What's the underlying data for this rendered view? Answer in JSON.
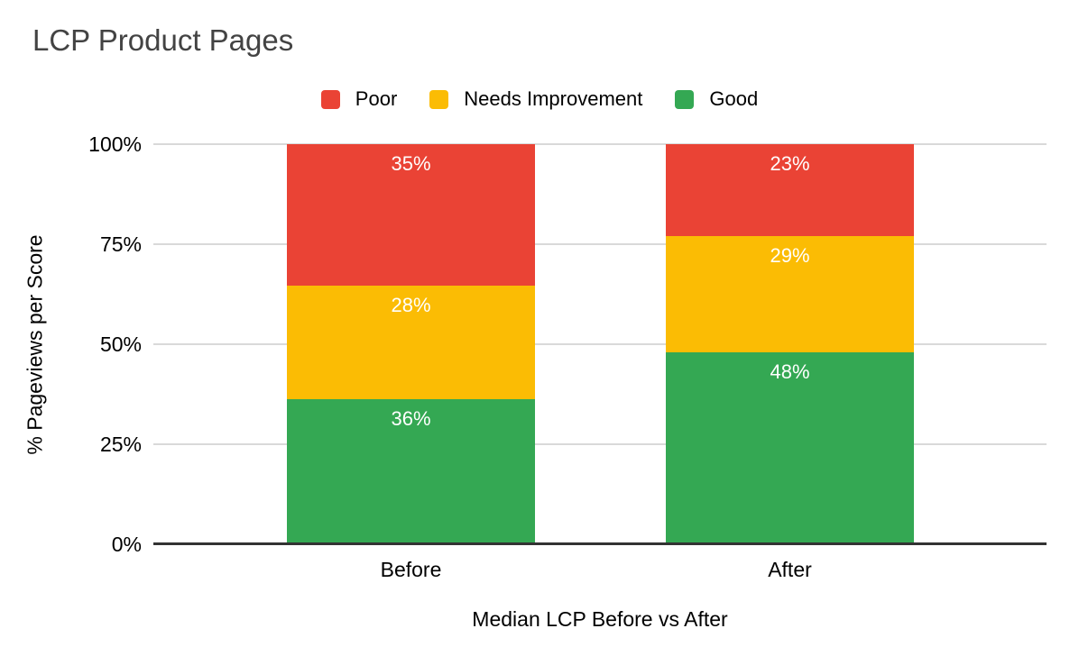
{
  "chart_data": {
    "type": "bar",
    "stacked": true,
    "title": "LCP Product Pages",
    "xlabel": "Median LCP Before vs After",
    "ylabel": "% Pageviews per Score",
    "categories": [
      "Before",
      "After"
    ],
    "series": [
      {
        "name": "Poor",
        "color": "#EA4335",
        "values": [
          35,
          23
        ]
      },
      {
        "name": "Needs Improvement",
        "color": "#FBBC04",
        "values": [
          28,
          29
        ]
      },
      {
        "name": "Good",
        "color": "#34A853",
        "values": [
          36,
          48
        ]
      }
    ],
    "value_suffix": "%",
    "data_label_color": "#ffffff",
    "y_ticks": [
      "0%",
      "25%",
      "50%",
      "75%",
      "100%"
    ],
    "ylim": [
      0,
      100
    ],
    "grid": true,
    "grid_color": "#d9d9d9",
    "axis_line_color": "#333333",
    "title_color": "#434343",
    "text_color": "#000000",
    "background": "#ffffff",
    "legend_position": "top"
  }
}
